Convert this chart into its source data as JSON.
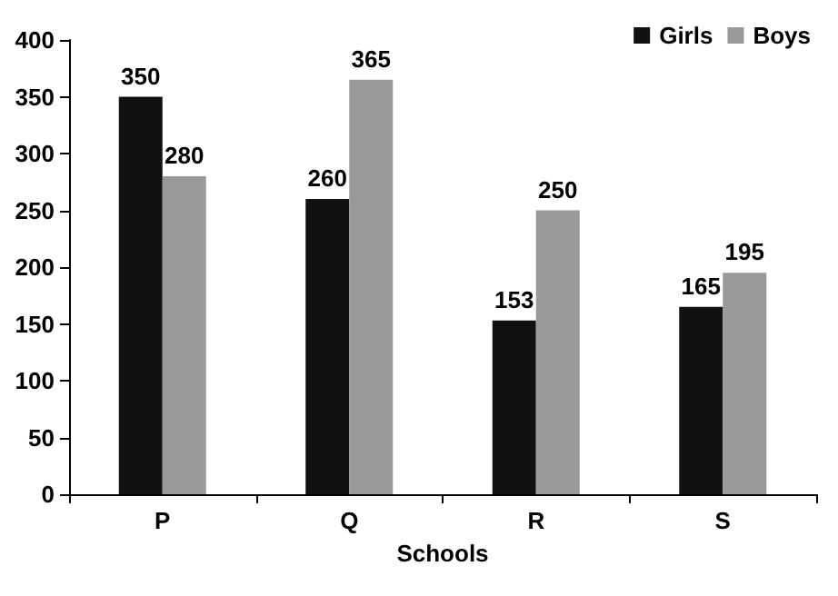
{
  "chart_data": {
    "type": "bar",
    "xlabel": "Schools",
    "categories": [
      "P",
      "Q",
      "R",
      "S"
    ],
    "series": [
      {
        "name": "Girls",
        "color": "#111111",
        "values": [
          350,
          260,
          153,
          165
        ]
      },
      {
        "name": "Boys",
        "color": "#999999",
        "values": [
          280,
          365,
          250,
          195
        ]
      }
    ],
    "ylim": [
      0,
      400
    ],
    "yticks": [
      0,
      50,
      100,
      150,
      200,
      250,
      300,
      350,
      400
    ],
    "data_labels": true,
    "legend": "top right",
    "grid": false
  }
}
